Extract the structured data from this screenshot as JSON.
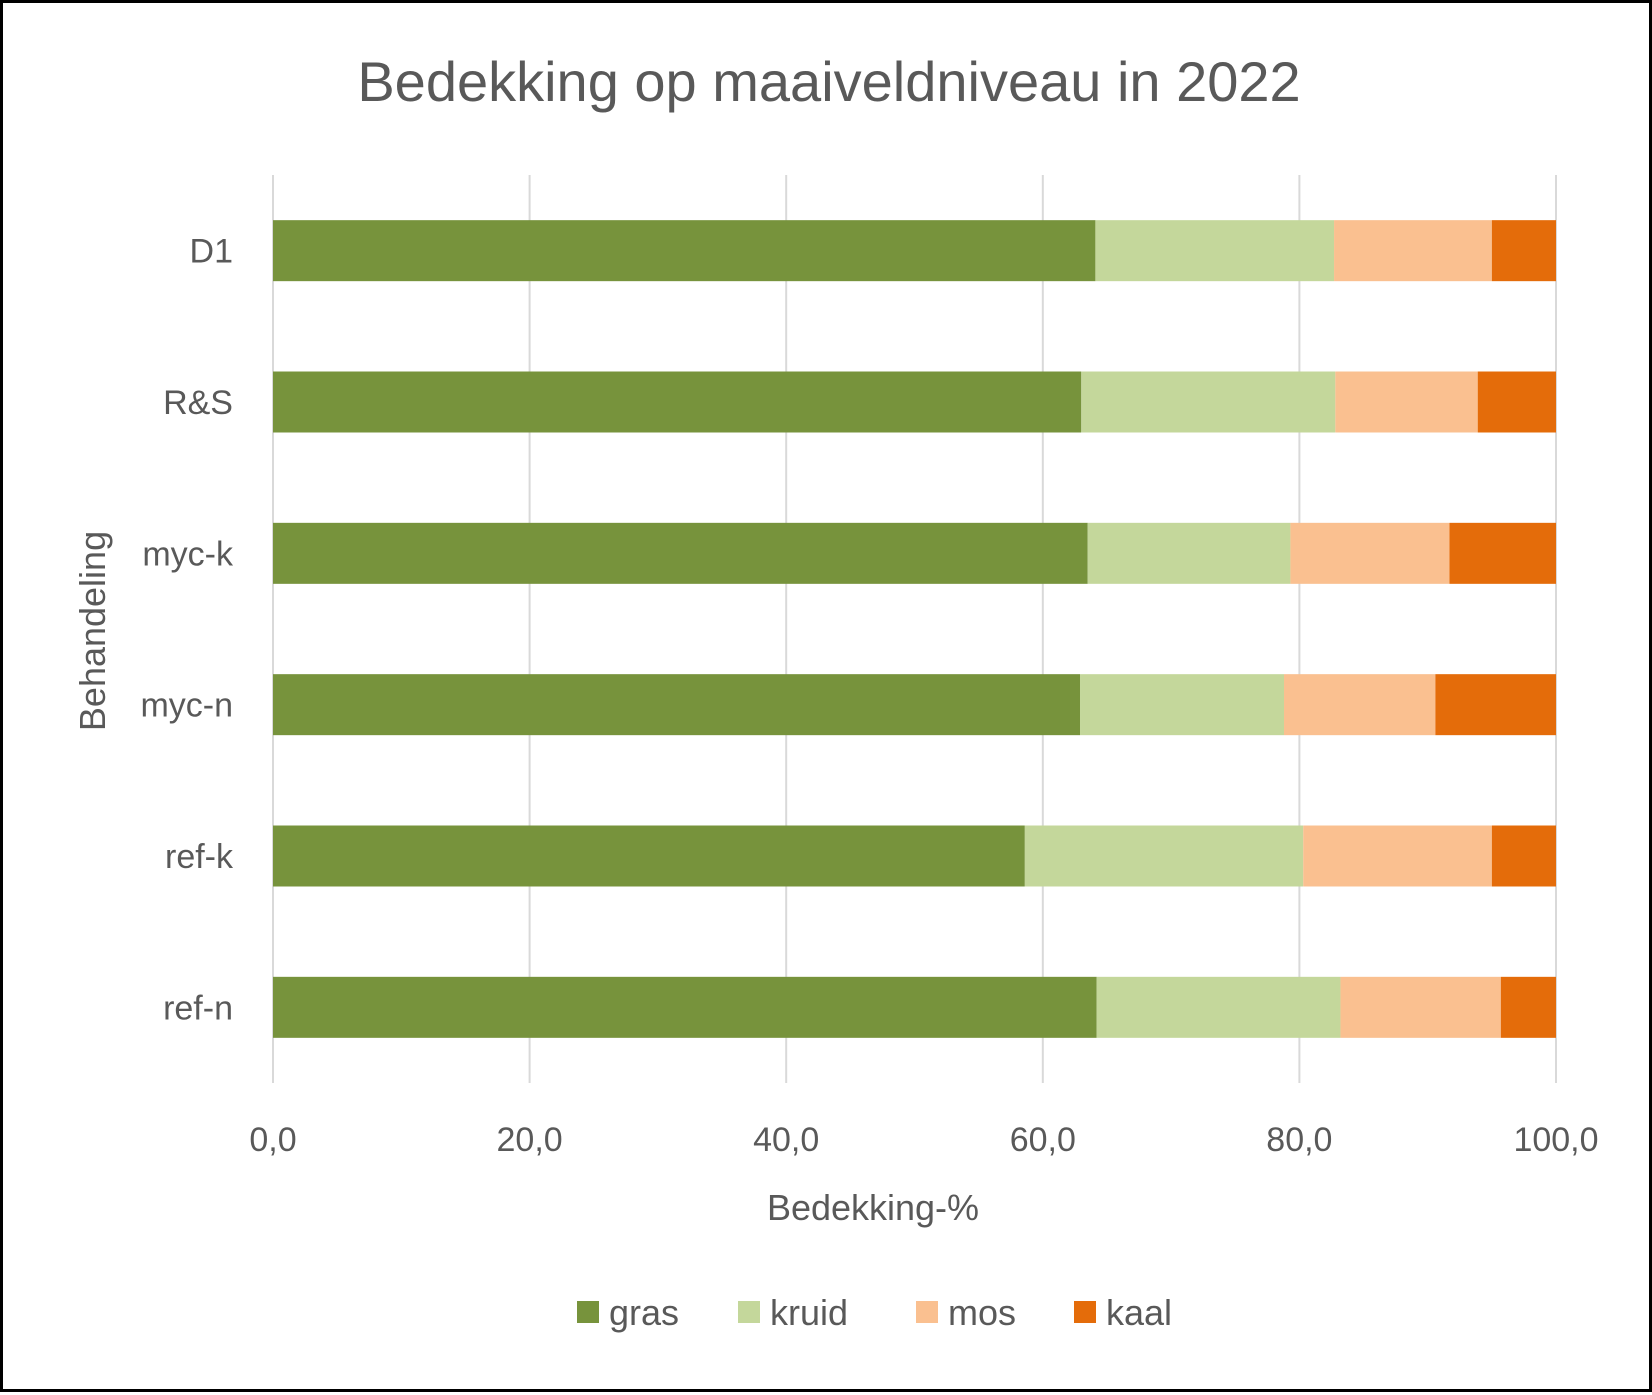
{
  "chart_data": {
    "type": "bar",
    "orientation": "horizontal",
    "stacked": true,
    "title": "Bedekking op maaiveldniveau in 2022",
    "xlabel": "Bedekking-%",
    "ylabel": "Behandeling",
    "xlim": [
      0,
      100
    ],
    "xticks": [
      "0,0",
      "20,0",
      "40,0",
      "60,0",
      "80,0",
      "100,0"
    ],
    "xtick_values": [
      0,
      20,
      40,
      60,
      80,
      100
    ],
    "grid": true,
    "legend_position": "bottom",
    "categories": [
      "D1",
      "R&S",
      "myc-k",
      "myc-n",
      "ref-k",
      "ref-n"
    ],
    "series": [
      {
        "name": "gras",
        "color": "#77933c",
        "values": [
          64.1,
          63.0,
          63.5,
          62.9,
          58.6,
          64.2
        ]
      },
      {
        "name": "kruid",
        "color": "#c4d79b",
        "values": [
          18.6,
          19.8,
          15.8,
          15.9,
          21.7,
          19.0
        ]
      },
      {
        "name": "mos",
        "color": "#fac090",
        "values": [
          12.3,
          11.1,
          12.4,
          11.8,
          14.7,
          12.5
        ]
      },
      {
        "name": "kaal",
        "color": "#e46c0a",
        "values": [
          5.0,
          6.1,
          8.3,
          9.4,
          5.0,
          4.3
        ]
      }
    ]
  }
}
